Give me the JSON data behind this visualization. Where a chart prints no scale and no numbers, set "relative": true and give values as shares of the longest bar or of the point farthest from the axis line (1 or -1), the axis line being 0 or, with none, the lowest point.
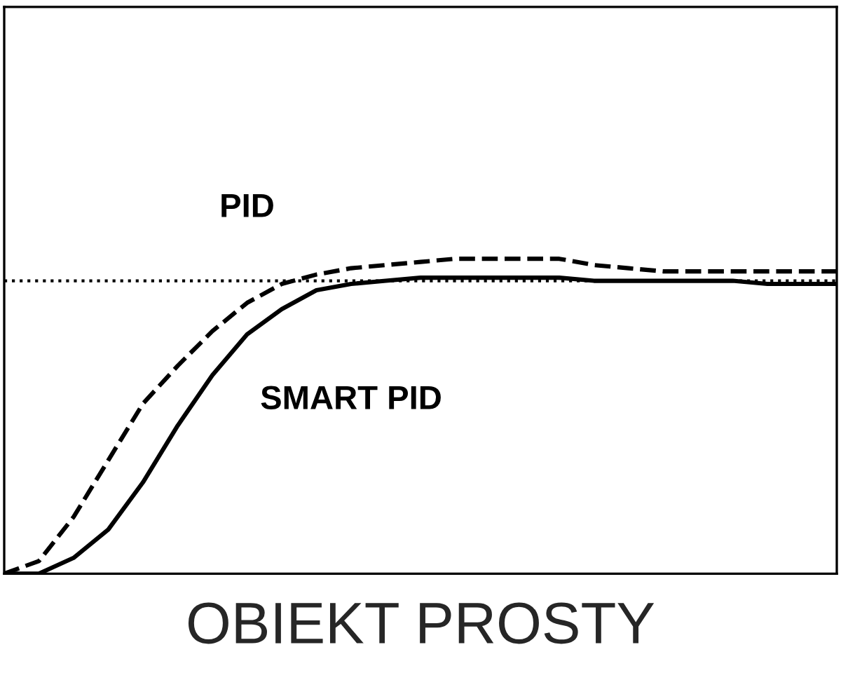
{
  "chart_data": {
    "type": "line",
    "xlabel": "OBIEKT PROSTY",
    "relative": true,
    "tick_labels": false,
    "legend": false,
    "categories": [
      null,
      null,
      null,
      null,
      null,
      null,
      null,
      null,
      null,
      null,
      null,
      null,
      null,
      null,
      null,
      null,
      null,
      null,
      null,
      null,
      null,
      null,
      null,
      null,
      null
    ],
    "series": [
      {
        "name": "PID",
        "color": "#000000",
        "line_style": "dashed",
        "values": [
          0,
          0.04,
          0.18,
          0.36,
          0.54,
          0.66,
          0.77,
          0.86,
          0.92,
          0.95,
          0.97,
          0.98,
          0.99,
          1.0,
          1.0,
          1.0,
          1.0,
          0.98,
          0.97,
          0.96,
          0.96,
          0.96,
          0.96,
          0.96,
          0.96
        ]
      },
      {
        "name": "SMART PID",
        "color": "#000000",
        "line_style": "solid",
        "values": [
          0,
          0,
          0.05,
          0.14,
          0.29,
          0.47,
          0.63,
          0.76,
          0.84,
          0.9,
          0.92,
          0.93,
          0.94,
          0.94,
          0.94,
          0.94,
          0.94,
          0.93,
          0.93,
          0.93,
          0.93,
          0.93,
          0.92,
          0.92,
          0.92
        ]
      }
    ],
    "ref_lines": [
      {
        "axis": "y",
        "value": 0.93,
        "color": "#000000",
        "line_style": "dotted"
      }
    ]
  }
}
